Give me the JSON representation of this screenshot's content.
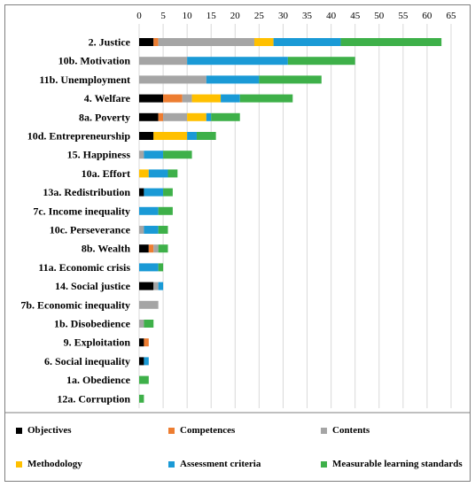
{
  "chart_data": {
    "type": "bar",
    "orientation": "horizontal",
    "stacked": true,
    "xlim": [
      0,
      65
    ],
    "x_ticks": [
      0,
      5,
      10,
      15,
      20,
      25,
      30,
      35,
      40,
      45,
      50,
      55,
      60,
      65
    ],
    "grid": "vertical",
    "legend_position": "bottom",
    "categories": [
      "2. Justice",
      "10b. Motivation",
      "11b. Unemployment",
      "4. Welfare",
      "8a. Poverty",
      "10d. Entrepreneurship",
      "15. Happiness",
      "10a. Effort",
      "13a. Redistribution",
      "7c. Income inequality",
      "10c. Perseverance",
      "8b. Wealth",
      "11a. Economic crisis",
      "14. Social justice",
      "7b. Economic inequality",
      "1b. Disobedience",
      "9. Exploitation",
      "6. Social inequality",
      "1a. Obedience",
      "12a. Corruption"
    ],
    "series": [
      {
        "name": "Objectives",
        "color": "#000000",
        "values": [
          3,
          0,
          0,
          5,
          4,
          3,
          0,
          0,
          1,
          0,
          0,
          2,
          0,
          3,
          0,
          0,
          1,
          1,
          0,
          0
        ]
      },
      {
        "name": "Competences",
        "color": "#ed7d31",
        "values": [
          1,
          0,
          0,
          4,
          1,
          0,
          0,
          0,
          0,
          0,
          0,
          1,
          0,
          0,
          0,
          0,
          1,
          0,
          0,
          0
        ]
      },
      {
        "name": "Contents",
        "color": "#a5a5a5",
        "values": [
          20,
          10,
          14,
          2,
          5,
          0,
          1,
          0,
          0,
          0,
          1,
          1,
          0,
          1,
          4,
          1,
          0,
          0,
          0,
          0
        ]
      },
      {
        "name": "Methodology",
        "color": "#ffc000",
        "values": [
          4,
          0,
          0,
          6,
          4,
          7,
          0,
          2,
          0,
          0,
          0,
          0,
          0,
          0,
          0,
          0,
          0,
          0,
          0,
          0
        ]
      },
      {
        "name": "Assessment criteria",
        "color": "#1a9ad6",
        "values": [
          14,
          21,
          11,
          4,
          1,
          2,
          4,
          4,
          4,
          4,
          3,
          0,
          4,
          1,
          0,
          0,
          0,
          1,
          0,
          0
        ]
      },
      {
        "name": "Measurable learning standards",
        "color": "#3eb049",
        "values": [
          21,
          14,
          13,
          11,
          6,
          4,
          6,
          2,
          2,
          3,
          2,
          2,
          1,
          0,
          0,
          2,
          0,
          0,
          2,
          1
        ]
      }
    ]
  }
}
